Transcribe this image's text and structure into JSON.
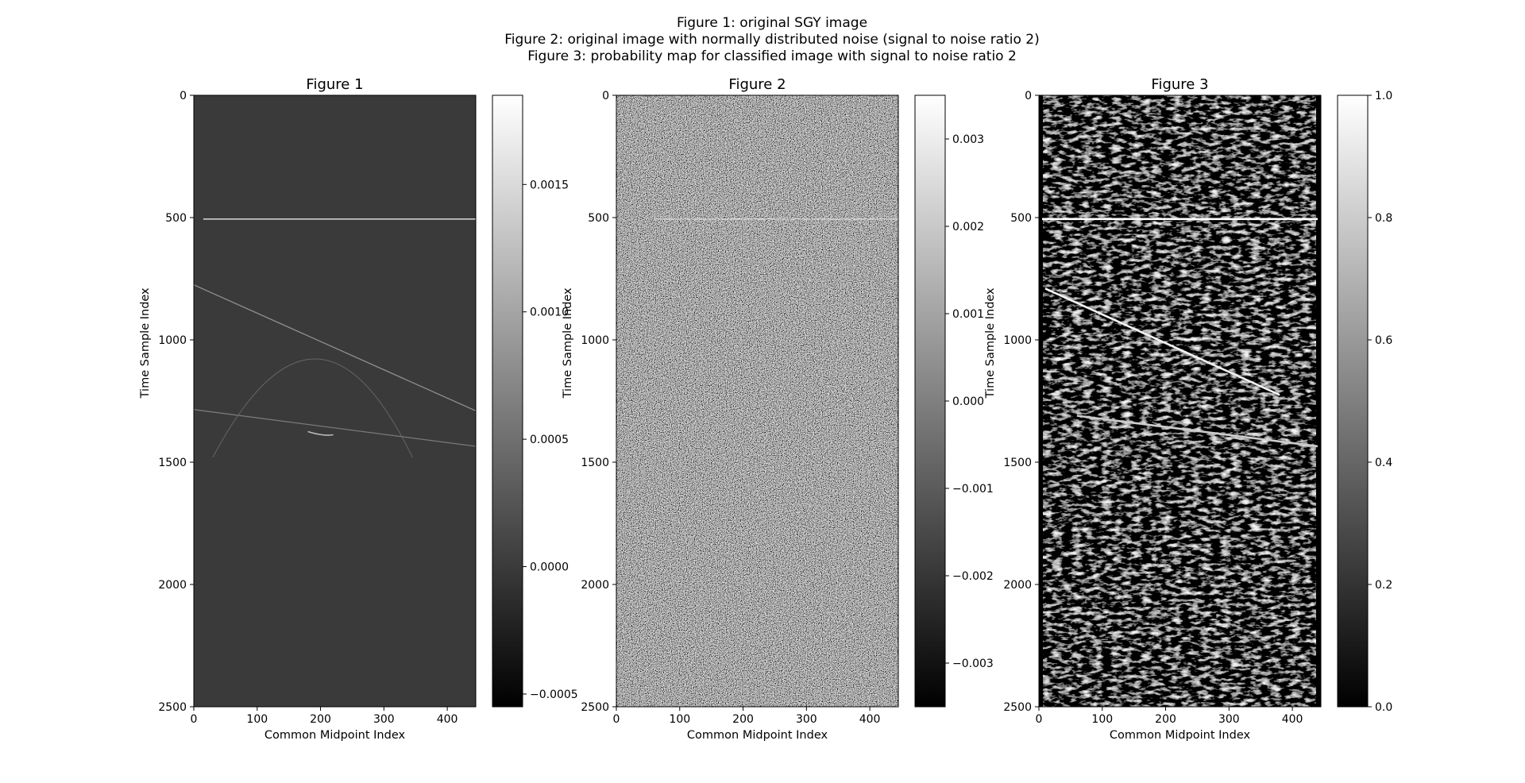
{
  "suptitle": [
    "Figure 1: original SGY image",
    "Figure 2: original image with normally distributed noise (signal to noise ratio 2)",
    "Figure 3: probability map for classified image with signal to noise ratio 2"
  ],
  "chart_data": [
    {
      "type": "heatmap",
      "title": "Figure 1",
      "xlabel": "Common Midpoint Index",
      "ylabel": "Time Sample Index",
      "xlim": [
        0,
        445
      ],
      "ylim": [
        2500,
        0
      ],
      "xticks": [
        "0",
        "100",
        "200",
        "300",
        "400"
      ],
      "yticks": [
        "0",
        "500",
        "1000",
        "1500",
        "2000",
        "2500"
      ],
      "colormap": "gray",
      "background_value": 0.0,
      "colorbar": {
        "range": [
          -0.00055,
          0.00185
        ],
        "ticks": [
          "−0.0005",
          "0.0000",
          "0.0005",
          "0.0010",
          "0.0015"
        ]
      },
      "features": [
        {
          "kind": "horizontal reflector",
          "t": 506,
          "cmp_range": [
            15,
            445
          ],
          "value": 0.0018
        },
        {
          "kind": "dipping reflector",
          "points": [
            [
              0,
              775
            ],
            [
              445,
              1290
            ]
          ],
          "value": 0.0008
        },
        {
          "kind": "dipping reflector",
          "points": [
            [
              0,
              1285
            ],
            [
              445,
              1435
            ]
          ],
          "value": 0.0006
        },
        {
          "kind": "diffraction hyperbola",
          "apex": [
            195,
            1078
          ],
          "ends": [
            [
              30,
              1480
            ],
            [
              345,
              1480
            ]
          ],
          "value": 0.0004
        },
        {
          "kind": "short lens",
          "points": [
            [
              180,
              1375
            ],
            [
              205,
              1395
            ],
            [
              220,
              1388
            ]
          ],
          "value": 0.0012
        }
      ]
    },
    {
      "type": "heatmap",
      "title": "Figure 2",
      "xlabel": "Common Midpoint Index",
      "ylabel": "Time Sample Index",
      "xlim": [
        0,
        445
      ],
      "ylim": [
        2500,
        0
      ],
      "xticks": [
        "0",
        "100",
        "200",
        "300",
        "400"
      ],
      "yticks": [
        "0",
        "500",
        "1000",
        "1500",
        "2000",
        "2500"
      ],
      "colormap": "gray",
      "colorbar": {
        "range": [
          -0.0035,
          0.0035
        ],
        "ticks": [
          "−0.003",
          "−0.002",
          "−0.001",
          "0.000",
          "0.001",
          "0.002",
          "0.003"
        ]
      },
      "features": [
        {
          "kind": "horizontal reflector",
          "t": 506,
          "cmp_range": [
            60,
            445
          ],
          "value": 0.0025
        }
      ]
    },
    {
      "type": "heatmap",
      "title": "Figure 3",
      "xlabel": "Common Midpoint Index",
      "ylabel": "Time Sample Index",
      "xlim": [
        0,
        445
      ],
      "ylim": [
        2500,
        0
      ],
      "xticks": [
        "0",
        "100",
        "200",
        "300",
        "400"
      ],
      "yticks": [
        "0",
        "500",
        "1000",
        "1500",
        "2000",
        "2500"
      ],
      "colormap": "gray",
      "colorbar": {
        "range": [
          0.0,
          1.0
        ],
        "ticks": [
          "0.0",
          "0.2",
          "0.4",
          "0.6",
          "0.8",
          "1.0"
        ]
      },
      "features": [
        {
          "kind": "horizontal reflector",
          "t": 506,
          "cmp_range": [
            5,
            440
          ],
          "value": 1.0
        },
        {
          "kind": "dipping reflector",
          "points": [
            [
              10,
              790
            ],
            [
              380,
              1225
            ]
          ],
          "value": 0.95
        },
        {
          "kind": "dipping reflector",
          "points": [
            [
              60,
              1310
            ],
            [
              440,
              1435
            ]
          ],
          "value": 0.8
        }
      ]
    }
  ]
}
